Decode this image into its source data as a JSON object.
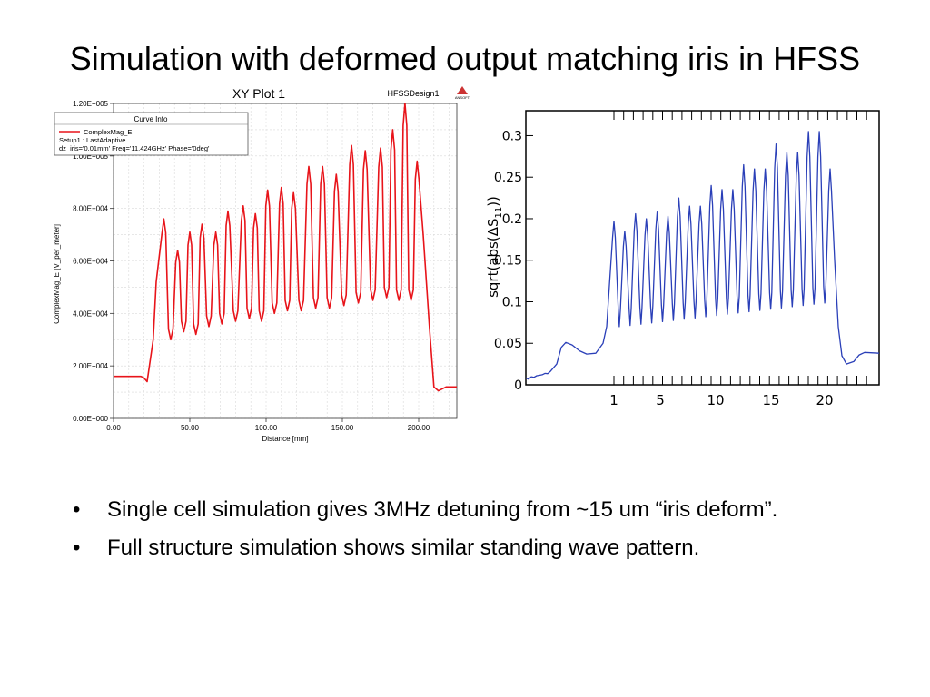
{
  "slide": {
    "title": "Simulation with deformed output matching iris in HFSS",
    "bullets": [
      "Single cell simulation gives 3MHz detuning from ~15 um “iris deform”.",
      "Full structure simulation shows similar standing wave pattern."
    ]
  },
  "colors": {
    "left_curve": "#e8141a",
    "right_curve": "#2a3fb8"
  },
  "logo_text": "ANSOFT",
  "chart_data": [
    {
      "type": "line",
      "title": "XY Plot 1",
      "design_label": "HFSSDesign1",
      "xlabel": "Distance [mm]",
      "ylabel": "ComplexMag_E [V_per_meter]",
      "xlim": [
        0,
        225
      ],
      "ylim": [
        0,
        120000
      ],
      "x_ticks": [
        "0.00",
        "50.00",
        "100.00",
        "150.00",
        "200.00"
      ],
      "y_ticks": [
        "0.00E+000",
        "2.00E+004",
        "4.00E+004",
        "6.00E+004",
        "8.00E+004",
        "1.00E+005",
        "1.20E+005"
      ],
      "legend": {
        "title": "Curve Info",
        "series": "ComplexMag_E",
        "line1": "Setup1 : LastAdaptive",
        "line2": "dz_iris='0.01mm' Freq='11.424GHz' Phase='0deg'"
      },
      "series": [
        {
          "name": "ComplexMag_E",
          "color": "#e8141a"
        }
      ],
      "peaks_x": [
        33,
        42,
        50,
        58,
        67,
        75,
        85,
        93,
        101,
        110,
        118,
        128,
        137,
        146,
        156,
        165,
        175,
        183,
        191,
        199
      ],
      "peaks_y": [
        76000,
        64000,
        71000,
        74000,
        71000,
        79000,
        81000,
        78000,
        87000,
        88000,
        86000,
        96000,
        96000,
        93000,
        104000,
        102000,
        103000,
        110000,
        120000,
        98000
      ],
      "valleys_y": [
        30000,
        33000,
        32000,
        35000,
        36000,
        37000,
        38000,
        37000,
        40000,
        41000,
        41000,
        42000,
        42000,
        43000,
        44000,
        45000,
        46000,
        45000,
        45000
      ],
      "baseline_left": 16000,
      "baseline_right": 12000,
      "data_range": [
        32,
        205
      ]
    },
    {
      "type": "line",
      "title": "",
      "xlabel": "",
      "ylabel": "sqrt(abs(ΔS11))",
      "ylim": [
        0,
        0.33
      ],
      "y_ticks": [
        "0",
        "0.05",
        "0.1",
        "0.15",
        "0.2",
        "0.25",
        "0.3"
      ],
      "x_ticks": [
        "1",
        "5",
        "10",
        "15",
        "20"
      ],
      "series": [
        {
          "name": "sqrt(abs(dS11))",
          "color": "#2a3fb8"
        }
      ],
      "peaks_y": [
        0.197,
        0.185,
        0.206,
        0.2,
        0.208,
        0.203,
        0.225,
        0.215,
        0.215,
        0.24,
        0.235,
        0.235,
        0.265,
        0.26,
        0.26,
        0.29,
        0.28,
        0.28,
        0.305,
        0.305,
        0.26
      ],
      "valley_start": 0.07,
      "valley_end": 0.1,
      "pre_bump": 0.05
    }
  ]
}
